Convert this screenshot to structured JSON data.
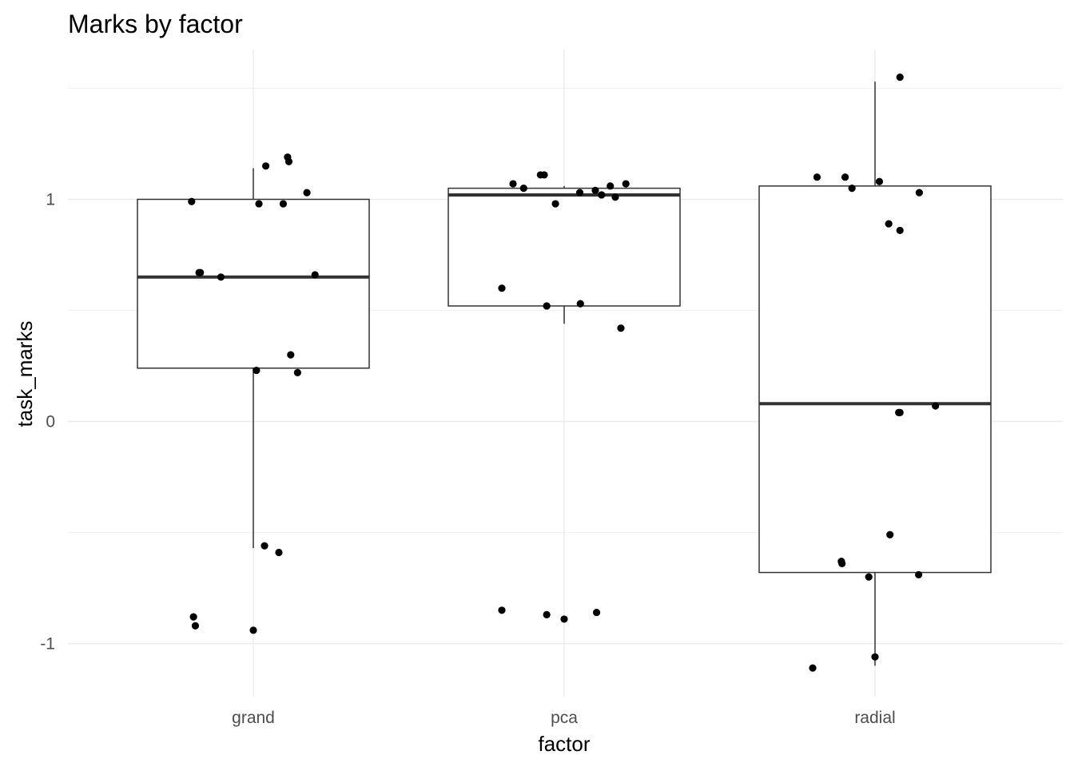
{
  "chart_data": {
    "type": "boxplot",
    "title": "Marks by factor",
    "xlabel": "factor",
    "ylabel": "task_marks",
    "categories": [
      "grand",
      "pca",
      "radial"
    ],
    "ylim": [
      -1.22,
      1.68
    ],
    "yticks": [
      -1,
      0,
      1
    ],
    "ytick_labels": [
      "-1",
      "0",
      "1"
    ],
    "grid": true,
    "legend": "none",
    "boxes": [
      {
        "category": "grand",
        "lower_whisker": -0.57,
        "q1": 0.24,
        "median": 0.65,
        "q3": 1.0,
        "upper_whisker": 1.14
      },
      {
        "category": "pca",
        "lower_whisker": 0.44,
        "q1": 0.52,
        "median": 1.02,
        "q3": 1.05,
        "upper_whisker": 1.06
      },
      {
        "category": "radial",
        "lower_whisker": -1.1,
        "q1": -0.68,
        "median": 0.08,
        "q3": 1.06,
        "upper_whisker": 1.53
      }
    ],
    "points": [
      {
        "category": "grand",
        "jitter": 0.2,
        "y": 1.15
      },
      {
        "category": "grand",
        "jitter": 0.55,
        "y": 1.19
      },
      {
        "category": "grand",
        "jitter": 0.57,
        "y": 1.17
      },
      {
        "category": "grand",
        "jitter": 0.86,
        "y": 1.03
      },
      {
        "category": "grand",
        "jitter": -0.99,
        "y": 0.99
      },
      {
        "category": "grand",
        "jitter": 0.09,
        "y": 0.98
      },
      {
        "category": "grand",
        "jitter": 0.48,
        "y": 0.98
      },
      {
        "category": "grand",
        "jitter": -0.87,
        "y": 0.67
      },
      {
        "category": "grand",
        "jitter": -0.85,
        "y": 0.67
      },
      {
        "category": "grand",
        "jitter": -0.52,
        "y": 0.65
      },
      {
        "category": "grand",
        "jitter": 0.99,
        "y": 0.66
      },
      {
        "category": "grand",
        "jitter": 0.6,
        "y": 0.3
      },
      {
        "category": "grand",
        "jitter": 0.05,
        "y": 0.23
      },
      {
        "category": "grand",
        "jitter": 0.71,
        "y": 0.22
      },
      {
        "category": "grand",
        "jitter": 0.18,
        "y": -0.56
      },
      {
        "category": "grand",
        "jitter": 0.41,
        "y": -0.59
      },
      {
        "category": "grand",
        "jitter": -0.96,
        "y": -0.88
      },
      {
        "category": "grand",
        "jitter": -0.93,
        "y": -0.92
      },
      {
        "category": "grand",
        "jitter": 0.0,
        "y": -0.94
      },
      {
        "category": "pca",
        "jitter": -0.82,
        "y": 1.07
      },
      {
        "category": "pca",
        "jitter": -0.38,
        "y": 1.11
      },
      {
        "category": "pca",
        "jitter": -0.32,
        "y": 1.11
      },
      {
        "category": "pca",
        "jitter": -0.65,
        "y": 1.05
      },
      {
        "category": "pca",
        "jitter": 0.25,
        "y": 1.03
      },
      {
        "category": "pca",
        "jitter": 0.5,
        "y": 1.04
      },
      {
        "category": "pca",
        "jitter": 0.74,
        "y": 1.06
      },
      {
        "category": "pca",
        "jitter": 0.99,
        "y": 1.07
      },
      {
        "category": "pca",
        "jitter": 0.6,
        "y": 1.02
      },
      {
        "category": "pca",
        "jitter": 0.82,
        "y": 1.01
      },
      {
        "category": "pca",
        "jitter": -0.14,
        "y": 0.98
      },
      {
        "category": "pca",
        "jitter": -1.0,
        "y": 0.6
      },
      {
        "category": "pca",
        "jitter": -0.28,
        "y": 0.52
      },
      {
        "category": "pca",
        "jitter": 0.26,
        "y": 0.53
      },
      {
        "category": "pca",
        "jitter": 0.91,
        "y": 0.42
      },
      {
        "category": "pca",
        "jitter": -1.0,
        "y": -0.85
      },
      {
        "category": "pca",
        "jitter": -0.28,
        "y": -0.87
      },
      {
        "category": "pca",
        "jitter": 0.0,
        "y": -0.89
      },
      {
        "category": "pca",
        "jitter": 0.52,
        "y": -0.86
      },
      {
        "category": "radial",
        "jitter": 0.4,
        "y": 1.55
      },
      {
        "category": "radial",
        "jitter": -0.93,
        "y": 1.1
      },
      {
        "category": "radial",
        "jitter": -0.48,
        "y": 1.1
      },
      {
        "category": "radial",
        "jitter": 0.07,
        "y": 1.08
      },
      {
        "category": "radial",
        "jitter": -0.37,
        "y": 1.05
      },
      {
        "category": "radial",
        "jitter": 0.71,
        "y": 1.03
      },
      {
        "category": "radial",
        "jitter": 0.22,
        "y": 0.89
      },
      {
        "category": "radial",
        "jitter": 0.4,
        "y": 0.86
      },
      {
        "category": "radial",
        "jitter": 0.38,
        "y": 0.04
      },
      {
        "category": "radial",
        "jitter": 0.4,
        "y": 0.04
      },
      {
        "category": "radial",
        "jitter": 0.97,
        "y": 0.07
      },
      {
        "category": "radial",
        "jitter": 0.24,
        "y": -0.51
      },
      {
        "category": "radial",
        "jitter": -0.54,
        "y": -0.63
      },
      {
        "category": "radial",
        "jitter": -0.53,
        "y": -0.64
      },
      {
        "category": "radial",
        "jitter": -0.1,
        "y": -0.7
      },
      {
        "category": "radial",
        "jitter": 0.7,
        "y": -0.69
      },
      {
        "category": "radial",
        "jitter": 0.0,
        "y": -1.06
      },
      {
        "category": "radial",
        "jitter": -1.0,
        "y": -1.11
      }
    ]
  }
}
